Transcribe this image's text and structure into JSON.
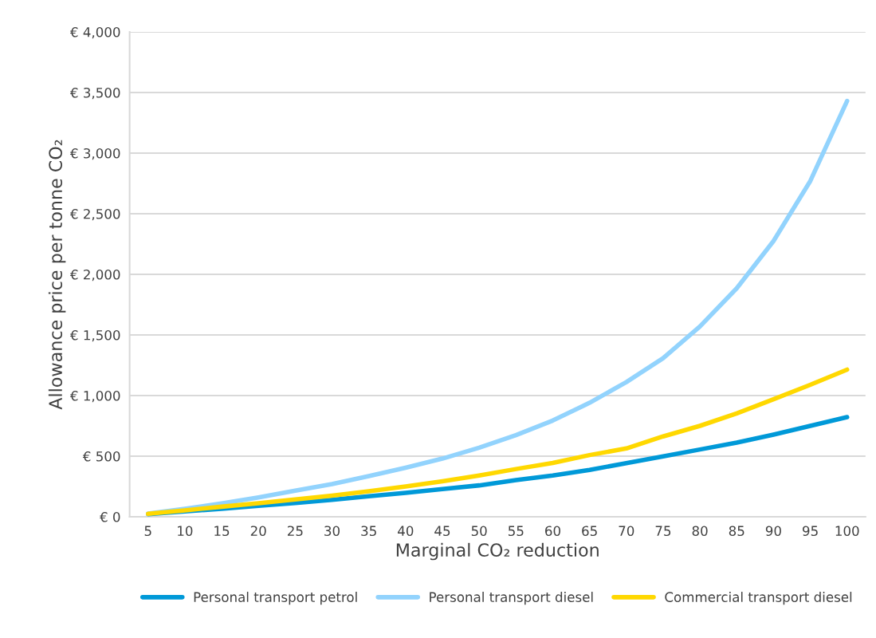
{
  "chart_data": {
    "type": "line",
    "xlabel": "Marginal CO₂ reduction",
    "ylabel": "Allowance price per tonne CO₂",
    "categories": [
      "5",
      "10",
      "15",
      "20",
      "25",
      "30",
      "35",
      "40",
      "45",
      "50",
      "55",
      "60",
      "65",
      "70",
      "75",
      "80",
      "85",
      "90",
      "95",
      "100"
    ],
    "series": [
      {
        "name": "Personal transport petrol",
        "color": "#0099d8",
        "values": [
          22,
          44,
          66,
          90,
          114,
          140,
          169,
          197,
          228,
          259,
          302,
          341,
          387,
          442,
          499,
          555,
          612,
          678,
          750,
          822
        ]
      },
      {
        "name": "Personal transport diesel",
        "color": "#92d3fd",
        "values": [
          26,
          66,
          110,
          160,
          215,
          270,
          335,
          405,
          480,
          570,
          673,
          794,
          940,
          1111,
          1308,
          1570,
          1885,
          2275,
          2770,
          3430
        ]
      },
      {
        "name": "Commercial transport diesel",
        "color": "#ffd800",
        "values": [
          24,
          53,
          83,
          112,
          143,
          175,
          211,
          250,
          292,
          340,
          394,
          444,
          509,
          564,
          663,
          750,
          853,
          969,
          1089,
          1214
        ]
      }
    ],
    "ylim": [
      0,
      4000
    ],
    "yticks": [
      {
        "value": 0,
        "label": "€ 0"
      },
      {
        "value": 500,
        "label": "€ 500"
      },
      {
        "value": 1000,
        "label": "€ 1,000"
      },
      {
        "value": 1500,
        "label": "€ 1,500"
      },
      {
        "value": 2000,
        "label": "€ 2,000"
      },
      {
        "value": 2500,
        "label": "€ 2,500"
      },
      {
        "value": 3000,
        "label": "€ 3,000"
      },
      {
        "value": 3500,
        "label": "€ 3,500"
      },
      {
        "value": 4000,
        "label": "€ 4,000"
      }
    ],
    "grid": "y",
    "legend": "bottom",
    "marker": "none",
    "line_style": "solid"
  }
}
